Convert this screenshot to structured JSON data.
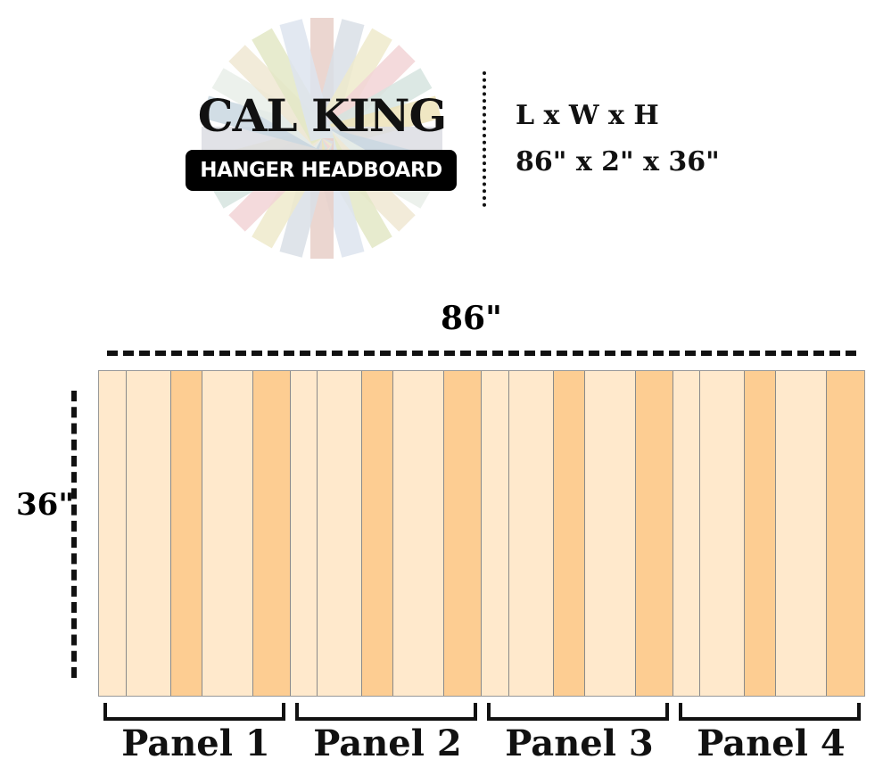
{
  "logo": {
    "title": "CAL KING",
    "subtitle": "HANGER HEADBOARD"
  },
  "dimensions": {
    "label": "L x W x H",
    "value": "86\" x 2\" x 36\""
  },
  "diagram": {
    "width_label": "86\"",
    "height_label": "36\"",
    "colors": {
      "light": "#FFE9CC",
      "dark": "#FDCD92",
      "line": "#8a8a8a"
    },
    "panel_pattern": [
      "light",
      "light",
      "dark",
      "light",
      "dark"
    ],
    "panels": [
      {
        "label": "Panel 1"
      },
      {
        "label": "Panel 2"
      },
      {
        "label": "Panel 3"
      },
      {
        "label": "Panel 4"
      }
    ]
  }
}
